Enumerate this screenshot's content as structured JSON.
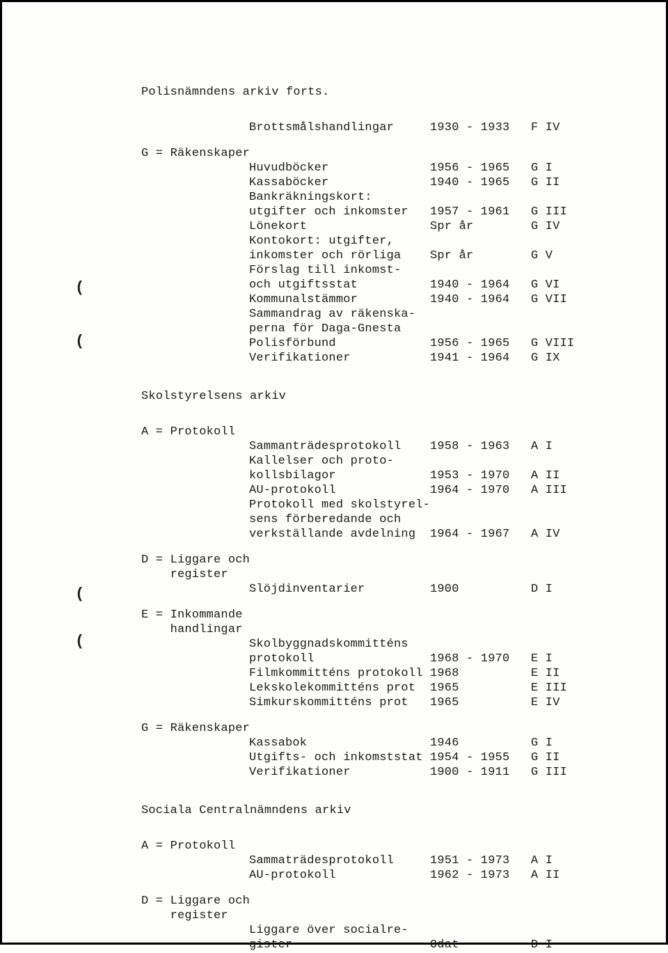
{
  "page_title": "Polisnämndens arkiv forts.",
  "punch_marks": [
    "(",
    "(",
    "(",
    "("
  ],
  "polis_rows": [
    {
      "cat": "",
      "name": "Brottsmålshandlingar",
      "date": "1930 - 1933",
      "ref": "F IV"
    },
    {
      "gap": "small"
    },
    {
      "cat": "G = Räkenskaper",
      "name": "",
      "date": "",
      "ref": ""
    },
    {
      "cat": "",
      "name": "Huvudböcker",
      "date": "1956 - 1965",
      "ref": "G I"
    },
    {
      "cat": "",
      "name": "Kassaböcker",
      "date": "1940 - 1965",
      "ref": "G II"
    },
    {
      "cat": "",
      "name": "Bankräkningskort:",
      "date": "",
      "ref": ""
    },
    {
      "cat": "",
      "name": "utgifter och inkomster",
      "date": "1957 - 1961",
      "ref": "G III"
    },
    {
      "cat": "",
      "name": "Lönekort",
      "date": "Spr år",
      "ref": "G IV"
    },
    {
      "cat": "",
      "name": "Kontokort: utgifter,",
      "date": "",
      "ref": ""
    },
    {
      "cat": "",
      "name": "inkomster och rörliga",
      "date": "Spr år",
      "ref": "G V"
    },
    {
      "cat": "",
      "name": "Förslag till inkomst-",
      "date": "",
      "ref": ""
    },
    {
      "cat": "",
      "name": "och utgiftsstat",
      "date": "1940 - 1964",
      "ref": "G VI"
    },
    {
      "cat": "",
      "name": "Kommunalstämmor",
      "date": "1940 - 1964",
      "ref": "G VII"
    },
    {
      "cat": "",
      "name": "Sammandrag av räkenska-",
      "date": "",
      "ref": ""
    },
    {
      "cat": "",
      "name": "perna för Daga-Gnesta",
      "date": "",
      "ref": ""
    },
    {
      "cat": "",
      "name": "Polisförbund",
      "date": "1956 - 1965",
      "ref": "G VIII"
    },
    {
      "cat": "",
      "name": "Verifikationer",
      "date": "1941 - 1964",
      "ref": "G IX"
    }
  ],
  "skol_title": "Skolstyrelsens arkiv",
  "skol_rows": [
    {
      "cat": "A = Protokoll",
      "name": "",
      "date": "",
      "ref": ""
    },
    {
      "cat": "",
      "name": "Sammanträdesprotokoll",
      "date": "1958 - 1963",
      "ref": "A I"
    },
    {
      "cat": "",
      "name": "Kallelser och proto-",
      "date": "",
      "ref": ""
    },
    {
      "cat": "",
      "name": "kollsbilagor",
      "date": "1953 - 1970",
      "ref": "A II"
    },
    {
      "cat": "",
      "name": "AU-protokoll",
      "date": "1964 - 1970",
      "ref": "A III"
    },
    {
      "cat": "",
      "name": "Protokoll med skolstyrel-",
      "date": "",
      "ref": ""
    },
    {
      "cat": "",
      "name": "sens förberedande och",
      "date": "",
      "ref": ""
    },
    {
      "cat": "",
      "name": "verkställande avdelning",
      "date": "1964 - 1967",
      "ref": "A IV"
    },
    {
      "gap": "small"
    },
    {
      "cat": "D = Liggare och",
      "name": "",
      "date": "",
      "ref": ""
    },
    {
      "cat": "    register",
      "name": "",
      "date": "",
      "ref": ""
    },
    {
      "cat": "",
      "name": "Slöjdinventarier",
      "date": "1900",
      "ref": "D I"
    },
    {
      "gap": "small"
    },
    {
      "cat": "E = Inkommande",
      "name": "",
      "date": "",
      "ref": ""
    },
    {
      "cat": "    handlingar",
      "name": "",
      "date": "",
      "ref": ""
    },
    {
      "cat": "",
      "name": "Skolbyggnadskommitténs",
      "date": "",
      "ref": ""
    },
    {
      "cat": "",
      "name": "protokoll",
      "date": "1968 - 1970",
      "ref": "E I"
    },
    {
      "cat": "",
      "name": "Filmkommitténs protokoll",
      "date": "1968",
      "ref": "E II"
    },
    {
      "cat": "",
      "name": "Lekskolekommitténs prot",
      "date": "1965",
      "ref": "E III"
    },
    {
      "cat": "",
      "name": "Simkurskommitténs prot",
      "date": "1965",
      "ref": "E IV"
    },
    {
      "gap": "small"
    },
    {
      "cat": "G = Räkenskaper",
      "name": "",
      "date": "",
      "ref": ""
    },
    {
      "cat": "",
      "name": "Kassabok",
      "date": "1946",
      "ref": "G I"
    },
    {
      "cat": "",
      "name": "Utgifts- och inkomststat",
      "date": "1954 - 1955",
      "ref": "G II"
    },
    {
      "cat": "",
      "name": "Verifikationer",
      "date": "1900 - 1911",
      "ref": "G III"
    }
  ],
  "social_title": "Sociala Centralnämndens arkiv",
  "social_rows": [
    {
      "cat": "A = Protokoll",
      "name": "",
      "date": "",
      "ref": ""
    },
    {
      "cat": "",
      "name": "Sammaträdesprotokoll",
      "date": "1951 - 1973",
      "ref": "A I"
    },
    {
      "cat": "",
      "name": "AU-protokoll",
      "date": "1962 - 1973",
      "ref": "A II"
    },
    {
      "gap": "small"
    },
    {
      "cat": "D = Liggare och",
      "name": "",
      "date": "",
      "ref": ""
    },
    {
      "cat": "    register",
      "name": "",
      "date": "",
      "ref": ""
    },
    {
      "cat": "",
      "name": "Liggare över socialre-",
      "date": "",
      "ref": ""
    },
    {
      "cat": "",
      "name": "gister",
      "date": "Odat",
      "ref": "D I"
    }
  ]
}
